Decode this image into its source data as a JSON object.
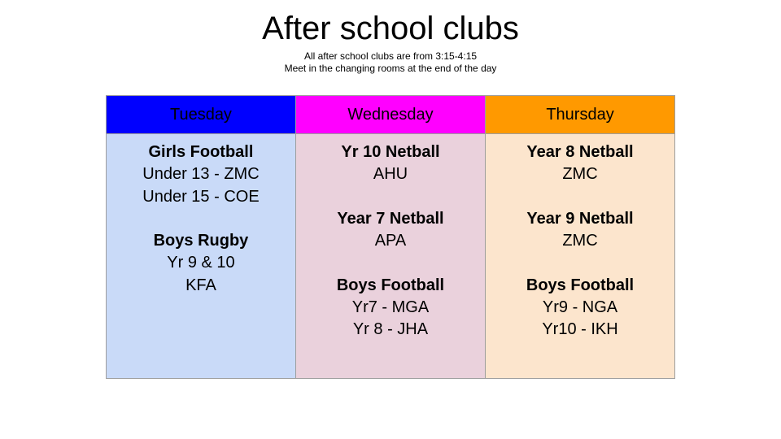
{
  "title": "After school clubs",
  "subtitle_lines": [
    "All after school clubs are from 3:15-4:15",
    "Meet in the changing rooms at the end of the day"
  ],
  "colors": {
    "tuesday_header": "#0000ff",
    "wednesday_header": "#ff00ff",
    "thursday_header": "#ff9900",
    "tuesday_body": "#c9daf8",
    "wednesday_body": "#ead1dc",
    "thursday_body": "#fce5cd"
  },
  "days": [
    {
      "name": "Tuesday",
      "groups": [
        {
          "title": "Girls Football",
          "lines": [
            "Under 13 - ZMC",
            "Under 15 - COE"
          ]
        },
        {
          "title": "Boys Rugby",
          "lines": [
            "Yr 9 & 10",
            "KFA"
          ]
        }
      ]
    },
    {
      "name": "Wednesday",
      "groups": [
        {
          "title": "Yr 10 Netball",
          "lines": [
            "AHU"
          ]
        },
        {
          "title": "Year 7 Netball",
          "lines": [
            "APA"
          ]
        },
        {
          "title": "Boys Football",
          "lines": [
            "Yr7 - MGA",
            "Yr 8 - JHA"
          ]
        }
      ]
    },
    {
      "name": "Thursday",
      "groups": [
        {
          "title": "Year 8 Netball",
          "lines": [
            "ZMC"
          ]
        },
        {
          "title": "Year 9 Netball",
          "lines": [
            "ZMC"
          ]
        },
        {
          "title": "Boys Football",
          "lines": [
            "Yr9 - NGA",
            "Yr10 - IKH"
          ]
        }
      ]
    }
  ]
}
